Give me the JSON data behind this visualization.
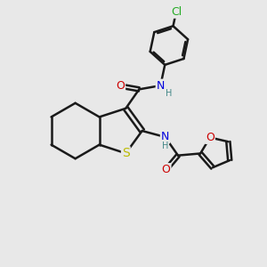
{
  "background_color": "#e8e8e8",
  "bond_color": "#1a1a1a",
  "bond_width": 1.8,
  "atom_colors": {
    "O": "#cc0000",
    "N": "#0000dd",
    "S": "#bbbb00",
    "Cl": "#22aa22",
    "H": "#448888",
    "C": "#1a1a1a"
  },
  "font_size": 9,
  "fig_width": 3.0,
  "fig_height": 3.0,
  "dpi": 100
}
